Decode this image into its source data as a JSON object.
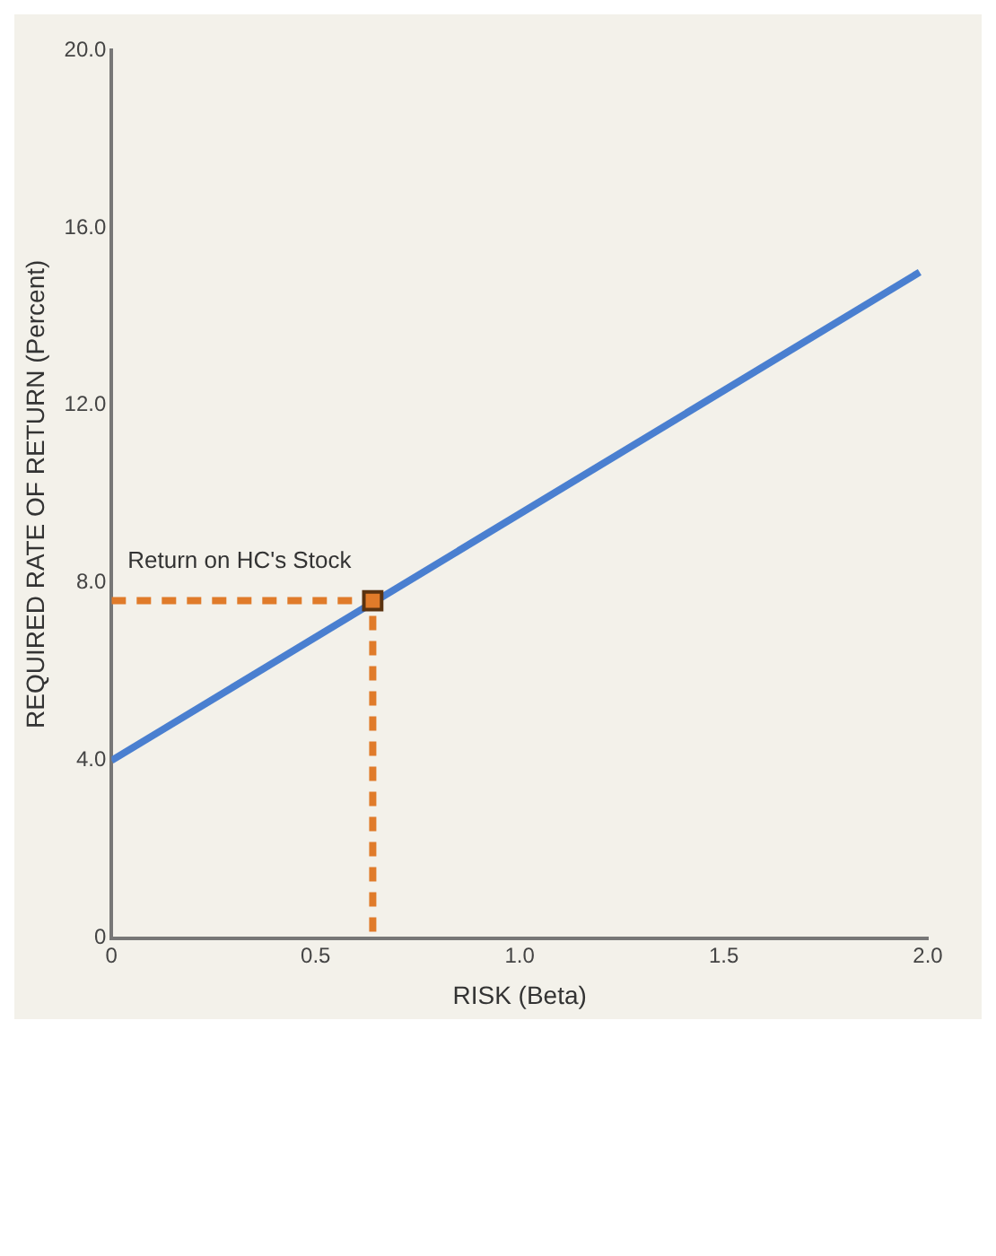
{
  "chart_data": {
    "type": "line",
    "xlabel": "RISK (Beta)",
    "ylabel": "REQUIRED RATE OF RETURN (Percent)",
    "xlim": [
      0,
      2
    ],
    "xticks": [
      0,
      {
        "value": 0.5,
        "label": "0.5"
      },
      {
        "value": 1,
        "label": "1.0"
      },
      {
        "value": 1.5,
        "label": "1.5"
      },
      {
        "value": 2,
        "label": "2.0"
      }
    ],
    "ylim": [
      0,
      20
    ],
    "yticks": [
      0,
      {
        "value": 4,
        "label": "4.0"
      },
      {
        "value": 8,
        "label": "8.0"
      },
      {
        "value": 12,
        "label": "12.0"
      },
      {
        "value": 16,
        "label": "16.0"
      },
      {
        "value": 20,
        "label": "20.0"
      }
    ],
    "grid": false,
    "series": [
      {
        "marker": "none",
        "line_style": "solid",
        "color": "#4a7fd0",
        "x": [
          0,
          1.98
        ],
        "values": [
          4,
          15
        ]
      },
      {
        "marker": "none",
        "line_style": "dashed",
        "color": "#e07b2a",
        "x": [
          0,
          0.64,
          0.64
        ],
        "values": [
          7.6,
          7.6,
          0
        ]
      },
      {
        "type": "scatter",
        "marker": "square",
        "color": "#e07b2a",
        "x": [
          0.64
        ],
        "values": [
          7.6
        ]
      }
    ],
    "annotations": [
      {
        "text": "Return on HC's Stock",
        "x": 0.64,
        "y": 7.6
      }
    ]
  }
}
